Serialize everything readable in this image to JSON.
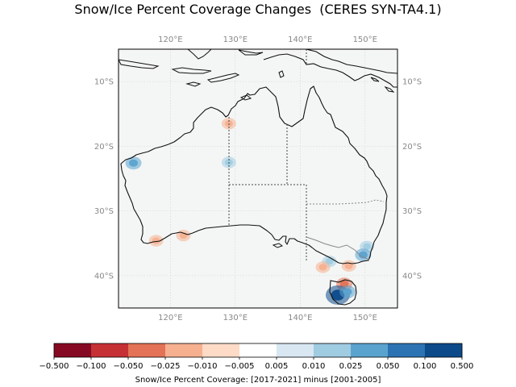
{
  "title": "Snow/Ice Percent Coverage Changes  (CERES SYN-TA4.1)",
  "map": {
    "lon_range": [
      112,
      155
    ],
    "lat_range": [
      -45,
      -5
    ],
    "lon_ticks": [
      {
        "value": 120,
        "label": "120°E"
      },
      {
        "value": 130,
        "label": "130°E"
      },
      {
        "value": 140,
        "label": "140°E"
      },
      {
        "value": 150,
        "label": "150°E"
      }
    ],
    "lat_ticks": [
      {
        "value": -10,
        "label": "10°S"
      },
      {
        "value": -20,
        "label": "20°S"
      },
      {
        "value": -30,
        "label": "30°S"
      },
      {
        "value": -40,
        "label": "40°S"
      }
    ],
    "gridlines": true,
    "background_color": "#f4f6f5",
    "coastline_color": "#111111",
    "border_color": "#444444"
  },
  "anomalies": [
    {
      "lon": 129,
      "lat": -16.5,
      "level": "neg_small"
    },
    {
      "lon": 129,
      "lat": -22.5,
      "level": "pos_small"
    },
    {
      "lon": 114.3,
      "lat": -22.6,
      "level": "pos_mid"
    },
    {
      "lon": 117.8,
      "lat": -34.6,
      "level": "neg_small"
    },
    {
      "lon": 122,
      "lat": -33.8,
      "level": "neg_small"
    },
    {
      "lon": 150.3,
      "lat": -35.5,
      "level": "pos_small"
    },
    {
      "lon": 149.7,
      "lat": -36.8,
      "level": "pos_mid"
    },
    {
      "lon": 144.5,
      "lat": -37.8,
      "level": "pos_small"
    },
    {
      "lon": 143.5,
      "lat": -38.7,
      "level": "neg_small"
    },
    {
      "lon": 147.5,
      "lat": -38.5,
      "level": "neg_small"
    },
    {
      "lon": 146.8,
      "lat": -41.3,
      "level": "neg_mid"
    },
    {
      "lon": 145.8,
      "lat": -43.0,
      "level": "pos_large"
    },
    {
      "lon": 147.3,
      "lat": -42.5,
      "level": "pos_mid"
    }
  ],
  "colorbar": {
    "label": "Snow/Ice Percent Coverage: [2017-2021] minus [2001-2005]",
    "tick_labels": [
      "−0.500",
      "−0.100",
      "−0.050",
      "−0.025",
      "−0.010",
      "−0.005",
      "0.005",
      "0.010",
      "0.025",
      "0.050",
      "0.100",
      "0.500"
    ],
    "colors": [
      "#870a24",
      "#c53135",
      "#e37256",
      "#f6b090",
      "#fddbc7",
      "#ffffff",
      "#d8e7f2",
      "#a0cce2",
      "#5ba3cf",
      "#2c73b3",
      "#0d4a8a"
    ]
  },
  "level_colors": {
    "neg_small": "#f6b090",
    "neg_mid": "#e37256",
    "pos_small": "#a0cce2",
    "pos_mid": "#5ba3cf",
    "pos_large": "#0d4a8a"
  }
}
